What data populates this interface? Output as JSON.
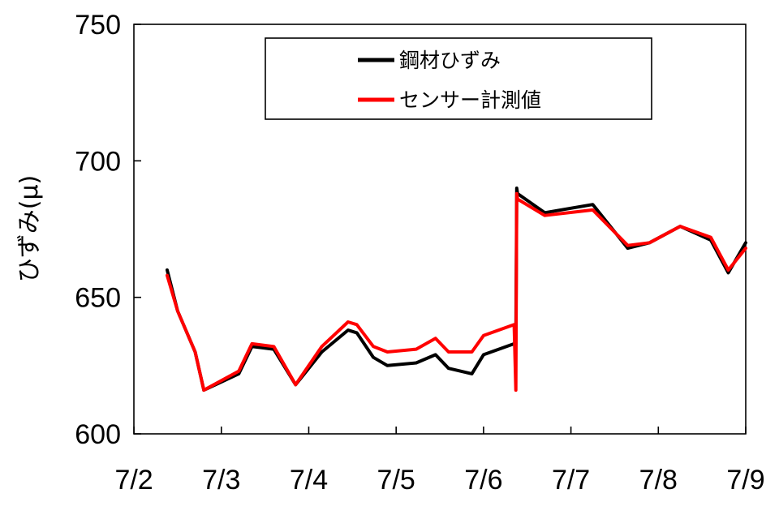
{
  "chart_data": {
    "type": "line",
    "title": "",
    "xlabel": "",
    "ylabel": "ひずみ(μ)",
    "ylim": [
      600,
      750
    ],
    "yticks": [
      600,
      650,
      700,
      750
    ],
    "xlim": [
      "7/1 23:59",
      "7/9 00:00"
    ],
    "x_tick_labels": [
      "7/2",
      "7/3",
      "7/4",
      "7/5",
      "7/6",
      "7/7",
      "7/8",
      "7/9"
    ],
    "grid": false,
    "legend": "top-center",
    "series": [
      {
        "name": "鋼材ひずみ",
        "color": "#000000",
        "x": [
          "7/2 09:07",
          "7/2 12:00",
          "7/2 16:48",
          "7/2 19:12",
          "7/3 04:48",
          "7/3 08:24",
          "7/3 14:24",
          "7/3 20:24",
          "7/4 03:36",
          "7/4 10:48",
          "7/4 13:12",
          "7/4 17:45",
          "7/4 21:36",
          "7/5 05:31",
          "7/5 10:48",
          "7/5 14:24",
          "7/5 20:48",
          "7/6 00:00",
          "7/6 08:24",
          "7/6 08:52",
          "7/6 09:07",
          "7/6 09:21",
          "7/6 16:48",
          "7/7 06:00",
          "7/7 15:36",
          "7/7 21:36",
          "7/8 06:00",
          "7/8 14:24",
          "7/8 19:12",
          "7/9 00:00"
        ],
        "values": [
          660,
          645,
          630,
          616,
          622,
          632,
          631,
          618,
          630,
          638,
          637,
          628,
          625,
          626,
          629,
          624,
          622,
          629,
          633,
          633,
          690,
          688,
          681,
          684,
          668,
          670,
          676,
          671,
          659,
          670
        ]
      },
      {
        "name": "センサー計測値",
        "color": "#ff0000",
        "x": [
          "7/2 09:07",
          "7/2 12:00",
          "7/2 16:48",
          "7/2 19:12",
          "7/3 04:48",
          "7/3 08:24",
          "7/3 14:24",
          "7/3 20:24",
          "7/4 03:36",
          "7/4 10:48",
          "7/4 13:12",
          "7/4 17:45",
          "7/4 21:36",
          "7/5 05:31",
          "7/5 10:48",
          "7/5 14:24",
          "7/5 20:48",
          "7/6 00:00",
          "7/6 08:24",
          "7/6 08:52",
          "7/6 09:07",
          "7/6 09:21",
          "7/6 16:48",
          "7/7 06:00",
          "7/7 15:36",
          "7/7 21:36",
          "7/8 06:00",
          "7/8 14:24",
          "7/8 19:12",
          "7/9 00:00"
        ],
        "values": [
          658,
          645,
          630,
          616,
          623,
          633,
          632,
          618,
          632,
          641,
          640,
          632,
          630,
          631,
          635,
          630,
          630,
          636,
          640,
          616,
          688,
          686,
          680,
          682,
          669,
          670,
          676,
          672,
          660,
          668
        ]
      }
    ]
  }
}
